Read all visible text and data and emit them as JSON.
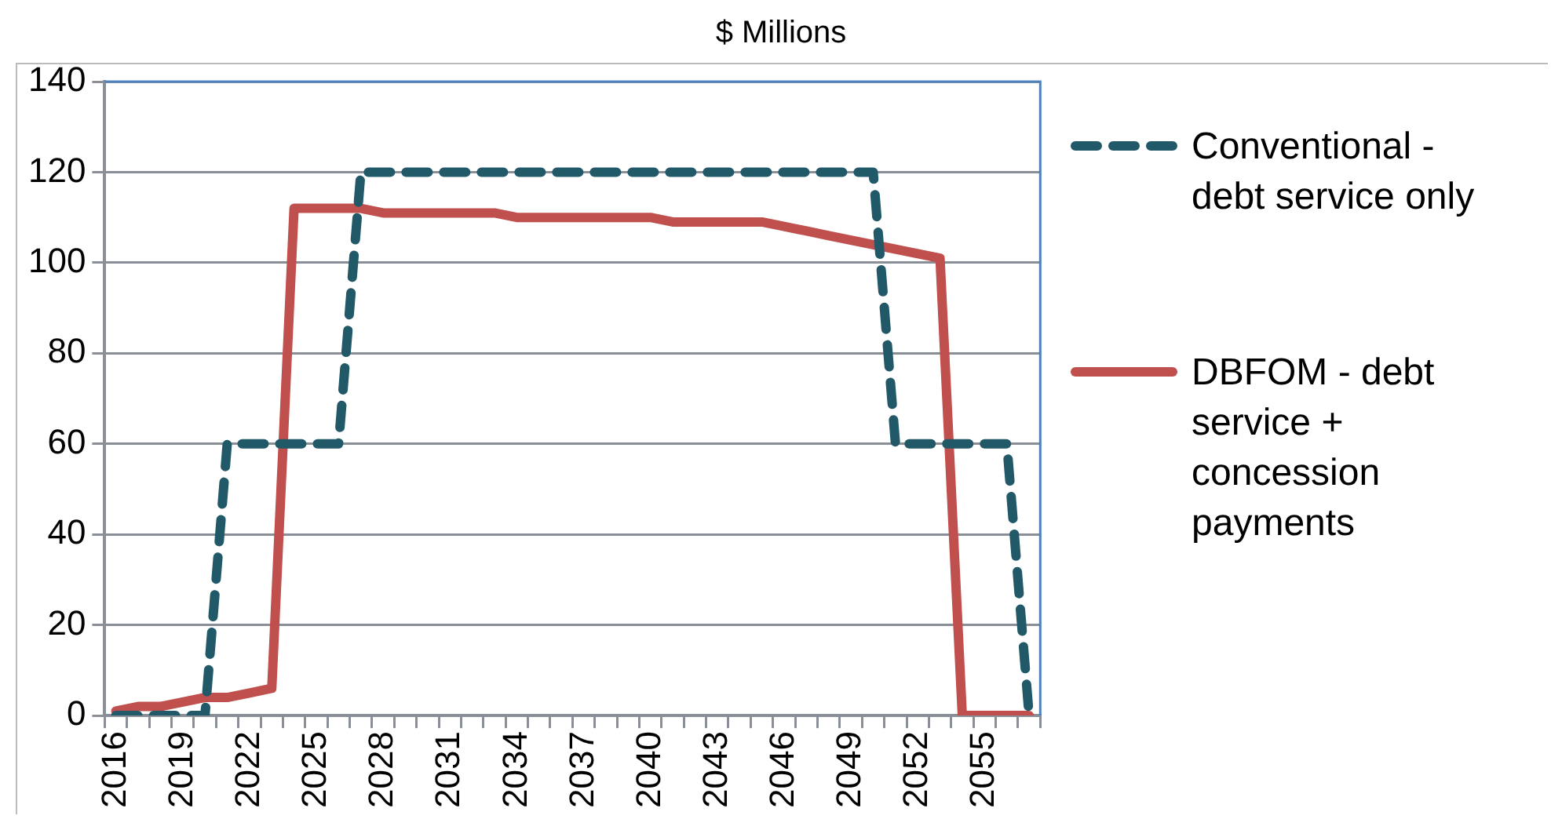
{
  "chart_data": {
    "type": "line",
    "title": "$ Millions",
    "categories": [
      "2016",
      null,
      null,
      "2019",
      null,
      null,
      "2022",
      null,
      null,
      "2025",
      null,
      null,
      "2028",
      null,
      null,
      "2031",
      null,
      null,
      "2034",
      null,
      null,
      "2037",
      null,
      null,
      "2040",
      null,
      null,
      "2043",
      null,
      null,
      "2046",
      null,
      null,
      "2049",
      null,
      null,
      "2052",
      null,
      null,
      "2055",
      null,
      null
    ],
    "series": [
      {
        "name": "Conventional - debt service only",
        "color": "#215968",
        "line_style": "dashed",
        "values": [
          0,
          0,
          0,
          0,
          0,
          60,
          60,
          60,
          60,
          60,
          60,
          120,
          120,
          120,
          120,
          120,
          120,
          120,
          120,
          120,
          120,
          120,
          120,
          120,
          120,
          120,
          120,
          120,
          120,
          120,
          120,
          120,
          120,
          120,
          120,
          60,
          60,
          60,
          60,
          60,
          60,
          0
        ]
      },
      {
        "name": "DBFOM - debt service + concession payments",
        "color": "#c0504d",
        "line_style": "solid",
        "values": [
          1,
          2,
          2,
          3,
          4,
          4,
          5,
          6,
          112,
          112,
          112,
          112,
          111,
          111,
          111,
          111,
          111,
          111,
          110,
          110,
          110,
          110,
          110,
          110,
          110,
          109,
          109,
          109,
          109,
          109,
          108,
          107,
          106,
          105,
          104,
          103,
          102,
          101,
          0,
          0,
          0,
          0
        ]
      }
    ],
    "ylim": [
      0,
      140
    ],
    "yticks": [
      0,
      20,
      40,
      60,
      80,
      100,
      120,
      140
    ],
    "grid": "y",
    "legend": "right",
    "marker": "none"
  }
}
